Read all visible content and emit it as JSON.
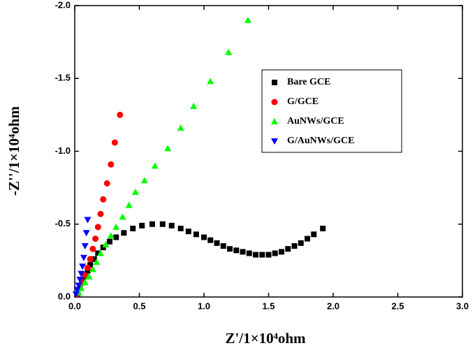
{
  "chart_data": {
    "type": "scatter",
    "x_label": "Z'/1×10⁴ohm",
    "y_label": "-Z''/1×10⁴ohm",
    "xlim": [
      0,
      3
    ],
    "ylim": [
      0,
      -2
    ],
    "xticks": [
      {
        "value": 0,
        "label": "0.0"
      },
      0.5,
      {
        "value": 1,
        "label": "1.0"
      },
      1.5,
      {
        "value": 2,
        "label": "2.0"
      },
      2.5,
      {
        "value": 3,
        "label": "3.0"
      }
    ],
    "yticks": [
      {
        "value": 0,
        "label": "0.0"
      },
      -0.5,
      {
        "value": -1,
        "label": "-1.0"
      },
      -1.5,
      {
        "value": -2,
        "label": "-2.0"
      }
    ],
    "legend_loc": "upper right",
    "series": [
      {
        "name": "Bare GCE",
        "color": "#000000",
        "marker": "square",
        "x": [
          0.02,
          0.04,
          0.06,
          0.08,
          0.1,
          0.12,
          0.15,
          0.18,
          0.22,
          0.27,
          0.32,
          0.38,
          0.45,
          0.52,
          0.6,
          0.68,
          0.75,
          0.82,
          0.88,
          0.94,
          1.0,
          1.05,
          1.1,
          1.15,
          1.2,
          1.25,
          1.3,
          1.35,
          1.4,
          1.45,
          1.5,
          1.55,
          1.6,
          1.65,
          1.7,
          1.75,
          1.8,
          1.85,
          1.92
        ],
        "values": [
          -0.02,
          -0.06,
          -0.1,
          -0.14,
          -0.18,
          -0.22,
          -0.26,
          -0.3,
          -0.34,
          -0.38,
          -0.41,
          -0.44,
          -0.47,
          -0.49,
          -0.5,
          -0.5,
          -0.49,
          -0.47,
          -0.45,
          -0.43,
          -0.41,
          -0.39,
          -0.37,
          -0.35,
          -0.33,
          -0.32,
          -0.31,
          -0.3,
          -0.29,
          -0.29,
          -0.29,
          -0.3,
          -0.31,
          -0.33,
          -0.35,
          -0.37,
          -0.4,
          -0.43,
          -0.47
        ]
      },
      {
        "name": "G/GCE",
        "color": "#ff0000",
        "marker": "circle",
        "x": [
          0.02,
          0.04,
          0.06,
          0.08,
          0.1,
          0.12,
          0.14,
          0.16,
          0.18,
          0.2,
          0.22,
          0.25,
          0.28,
          0.31,
          0.35
        ],
        "values": [
          -0.02,
          -0.06,
          -0.1,
          -0.15,
          -0.2,
          -0.26,
          -0.33,
          -0.4,
          -0.48,
          -0.57,
          -0.67,
          -0.78,
          -0.91,
          -1.06,
          -1.25
        ]
      },
      {
        "name": "AuNWs/GCE",
        "color": "#00ff00",
        "marker": "triangle-up",
        "x": [
          0.03,
          0.05,
          0.08,
          0.11,
          0.14,
          0.17,
          0.2,
          0.24,
          0.28,
          0.32,
          0.37,
          0.42,
          0.47,
          0.54,
          0.62,
          0.72,
          0.82,
          0.92,
          1.05,
          1.19,
          1.34
        ],
        "values": [
          -0.03,
          -0.06,
          -0.1,
          -0.14,
          -0.19,
          -0.24,
          -0.3,
          -0.36,
          -0.42,
          -0.48,
          -0.55,
          -0.63,
          -0.72,
          -0.8,
          -0.9,
          -1.02,
          -1.16,
          -1.31,
          -1.48,
          -1.68,
          -1.9
        ]
      },
      {
        "name": "G/AuNWs/GCE",
        "color": "#0000ff",
        "marker": "triangle-down",
        "x": [
          0.01,
          0.02,
          0.03,
          0.04,
          0.05,
          0.06,
          0.07,
          0.08,
          0.09,
          0.1
        ],
        "values": [
          -0.02,
          -0.05,
          -0.08,
          -0.12,
          -0.16,
          -0.21,
          -0.27,
          -0.35,
          -0.44,
          -0.53
        ]
      }
    ]
  }
}
